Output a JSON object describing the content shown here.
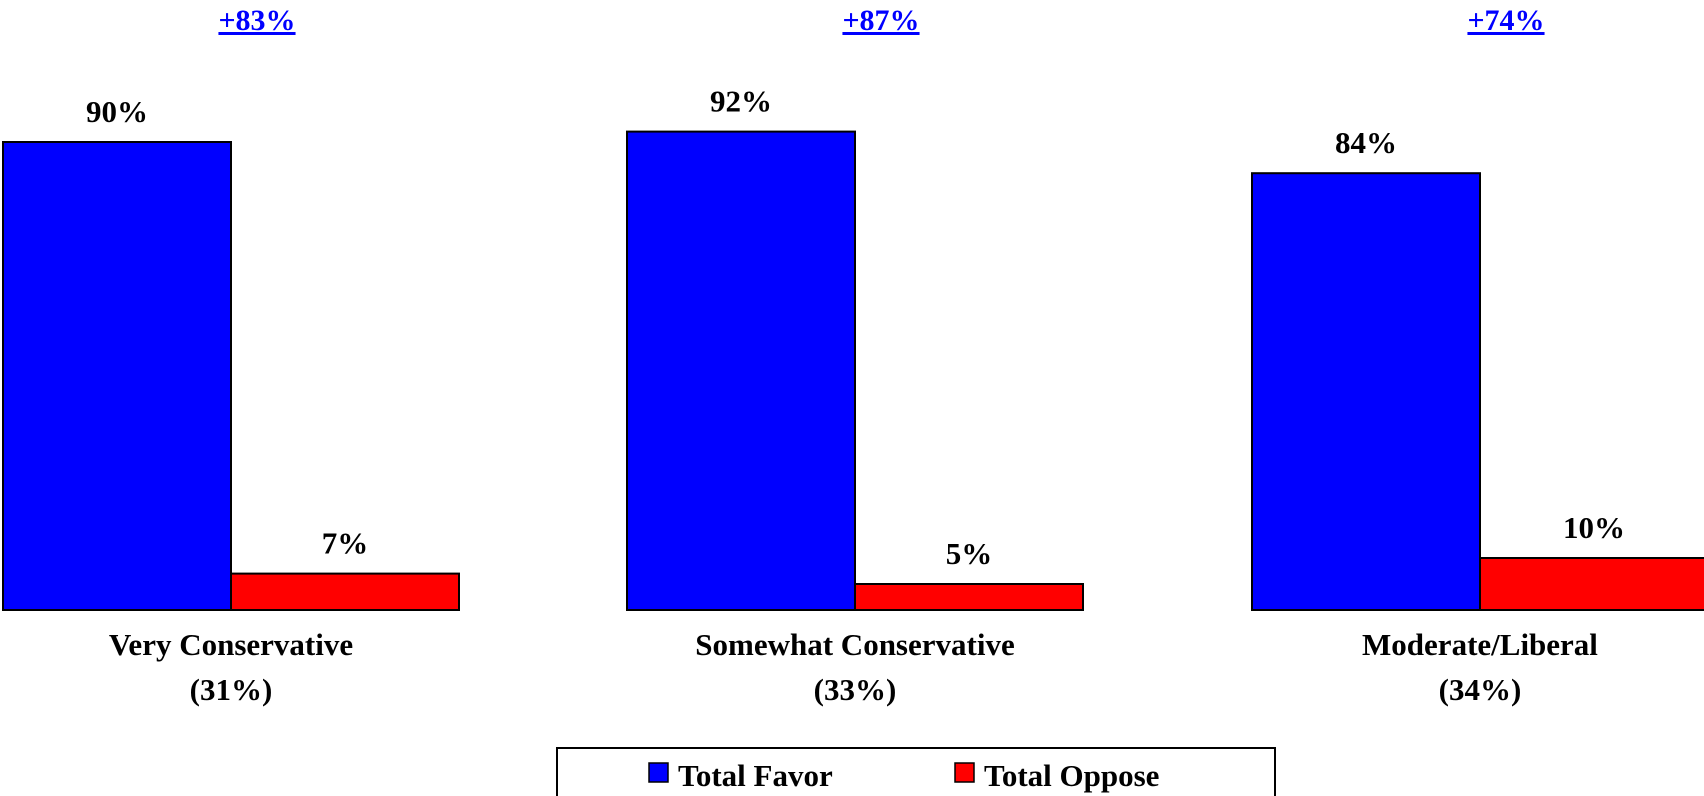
{
  "chart_data": {
    "type": "bar",
    "categories": [
      "Very Conservative",
      "Somewhat Conservative",
      "Moderate/Liberal"
    ],
    "category_shares": [
      "(31%)",
      "(33%)",
      "(34%)"
    ],
    "differences": [
      "+83%",
      "+87%",
      "+74%"
    ],
    "series": [
      {
        "name": "Total Favor",
        "color": "#0000ff",
        "values": [
          90,
          92,
          84
        ],
        "labels": [
          "90%",
          "92%",
          "84%"
        ]
      },
      {
        "name": "Total Oppose",
        "color": "#ff0000",
        "values": [
          7,
          5,
          10
        ],
        "labels": [
          "7%",
          "5%",
          "10%"
        ]
      }
    ],
    "legend_position": "bottom-center",
    "grid": false,
    "ylim": [
      0,
      100
    ]
  }
}
